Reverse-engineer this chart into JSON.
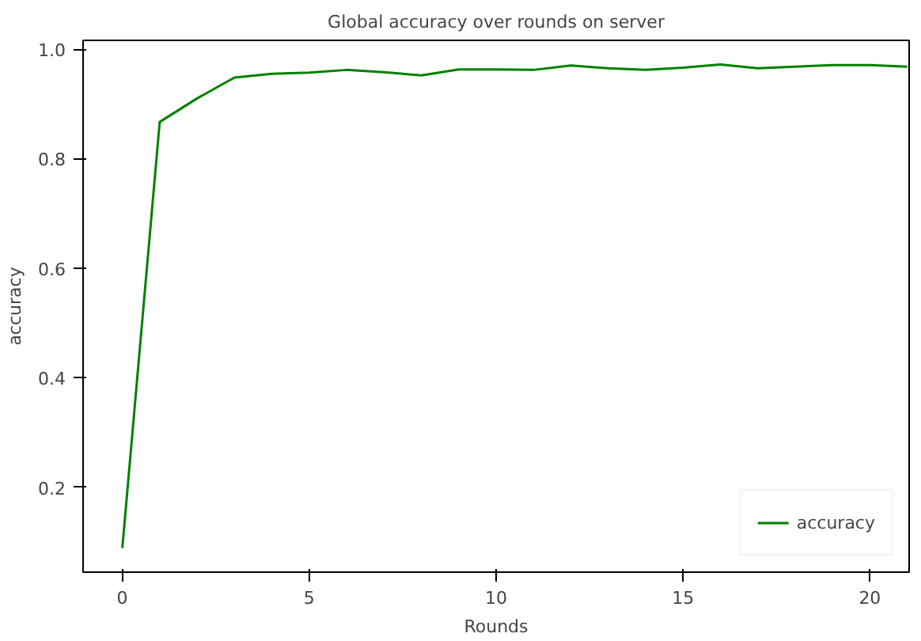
{
  "chart_data": {
    "type": "line",
    "title": "Global accuracy over rounds on server",
    "xlabel": "Rounds",
    "ylabel": "accuracy",
    "x": [
      0,
      1,
      2,
      3,
      4,
      5,
      6,
      7,
      8,
      9,
      10,
      11,
      12,
      13,
      14,
      15,
      16,
      17,
      18,
      19,
      20,
      21
    ],
    "series": [
      {
        "name": "accuracy",
        "color": "#008000",
        "values": [
          0.089,
          0.867,
          0.91,
          0.948,
          0.955,
          0.957,
          0.962,
          0.958,
          0.952,
          0.963,
          0.963,
          0.962,
          0.97,
          0.965,
          0.962,
          0.966,
          0.972,
          0.965,
          0.968,
          0.971,
          0.971,
          0.968
        ]
      }
    ],
    "xlim": [
      -1.05,
      21.05
    ],
    "ylim": [
      0.045,
      1.016
    ],
    "xticks": [
      0,
      5,
      10,
      15,
      20
    ],
    "yticks": [
      0.2,
      0.4,
      0.6,
      0.8,
      {
        "value": 1,
        "label": "1.0"
      }
    ],
    "grid": false,
    "legend": "bottom right",
    "marker": "none",
    "line_style": "solid"
  }
}
